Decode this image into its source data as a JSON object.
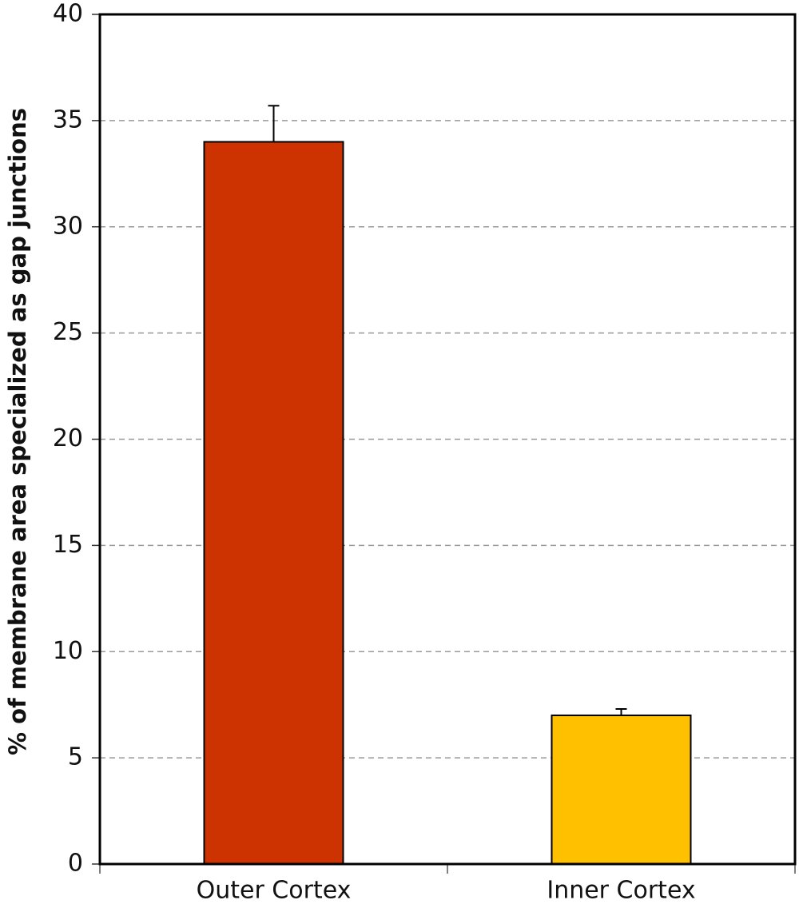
{
  "chart_data": {
    "type": "bar",
    "y_label": "% of membrane area specialized as gap junctions",
    "categories": [
      "Outer Cortex",
      "Inner Cortex"
    ],
    "values": [
      34,
      7
    ],
    "errors": [
      1.7,
      0.3
    ],
    "colors": [
      "#cc3300",
      "#ffc000"
    ],
    "ylim": [
      0,
      40
    ],
    "yticks": [
      0,
      5,
      10,
      15,
      20,
      25,
      30,
      35,
      40
    ],
    "grid": true
  }
}
